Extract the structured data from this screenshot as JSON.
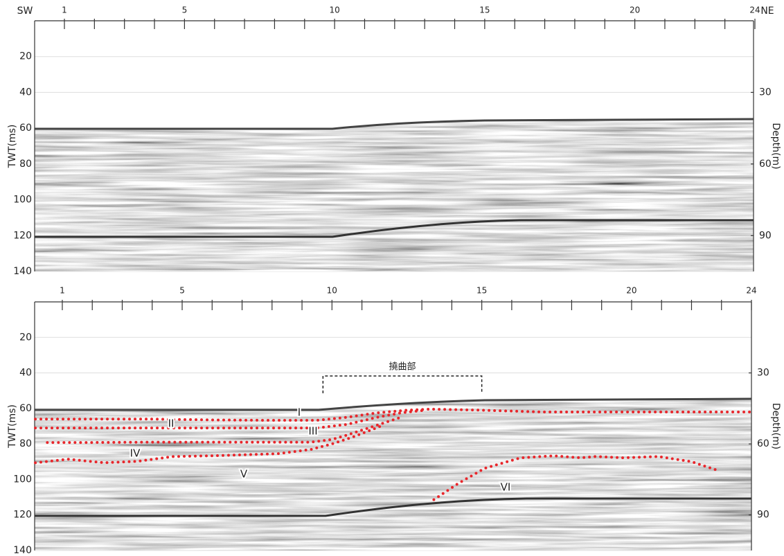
{
  "panels": [
    {
      "left_label": "SW",
      "right_label": "NE",
      "xlim": [
        0,
        24
      ],
      "xticks": [
        1,
        5,
        10,
        15,
        20,
        24
      ],
      "minor_xticks": [
        2,
        3,
        4,
        6,
        7,
        8,
        9,
        11,
        12,
        13,
        14,
        16,
        17,
        18,
        19,
        21,
        22,
        23
      ],
      "y_label": "TWT(ms)",
      "ylim": [
        0,
        140
      ],
      "yticks": [
        20,
        40,
        60,
        80,
        100,
        120,
        140
      ],
      "y2_label": "Depth(m)",
      "y2lim": [
        0,
        105
      ],
      "y2ticks": [
        30,
        60,
        90
      ],
      "grid": true
    },
    {
      "xlim": [
        0,
        24
      ],
      "xticks": [
        1,
        5,
        10,
        15,
        20,
        24
      ],
      "minor_xticks": [
        2,
        3,
        4,
        6,
        7,
        8,
        9,
        11,
        12,
        13,
        14,
        16,
        17,
        18,
        19,
        21,
        22,
        23
      ],
      "y_label": "TWT(ms)",
      "ylim": [
        0,
        140
      ],
      "yticks": [
        20,
        40,
        60,
        80,
        100,
        120,
        140
      ],
      "y2_label": "Depth(m)",
      "y2lim": [
        0,
        105
      ],
      "y2ticks": [
        30,
        60,
        90
      ],
      "grid": true,
      "flexure": {
        "label": "撓曲部",
        "x": [
          9.7,
          15
        ]
      },
      "horizon_color": "#e8262b",
      "horizons": [
        {
          "label": "I",
          "x": [
            0.1,
            2,
            4,
            6,
            8,
            9.5,
            10.5,
            11.5,
            12.5,
            13.3,
            15,
            17,
            19,
            21,
            24
          ],
          "y": [
            66,
            66,
            66,
            66.5,
            66.7,
            66.7,
            65,
            62.5,
            61,
            60.4,
            61,
            62,
            62,
            62,
            62
          ]
        },
        {
          "label": "II",
          "x": [
            0.1,
            2,
            4,
            6,
            8,
            9.5,
            10.5,
            11.5,
            12.3,
            13
          ],
          "y": [
            71,
            71,
            71,
            71,
            71,
            71,
            69,
            65,
            62.5,
            61.2
          ]
        },
        {
          "label": "III",
          "x": [
            0.5,
            2,
            4,
            6,
            8,
            9.3,
            10,
            10.5,
            11.4,
            12.3
          ],
          "y": [
            79.2,
            79.2,
            79,
            79,
            79,
            79,
            77.5,
            75,
            70,
            65
          ]
        },
        {
          "label": "IV",
          "x": [
            0.1,
            1.2,
            2.4,
            3.5,
            4.7,
            5.9,
            8.2,
            9.3,
            10,
            10.7,
            11.6
          ],
          "y": [
            90.6,
            88.6,
            90.6,
            89.8,
            87.1,
            86.7,
            85.5,
            83.1,
            80,
            76.1,
            70.2
          ]
        },
        {
          "label": "V"
        },
        {
          "label": "VI",
          "x": [
            13.4,
            14.2,
            15.1,
            16.3,
            17.4,
            18.3,
            18.8,
            19.7,
            20.9,
            22,
            22.8
          ],
          "y": [
            111.4,
            102.4,
            93.7,
            87.8,
            86.7,
            87.8,
            87.1,
            87.8,
            87.1,
            90,
            94.5
          ]
        }
      ]
    }
  ]
}
